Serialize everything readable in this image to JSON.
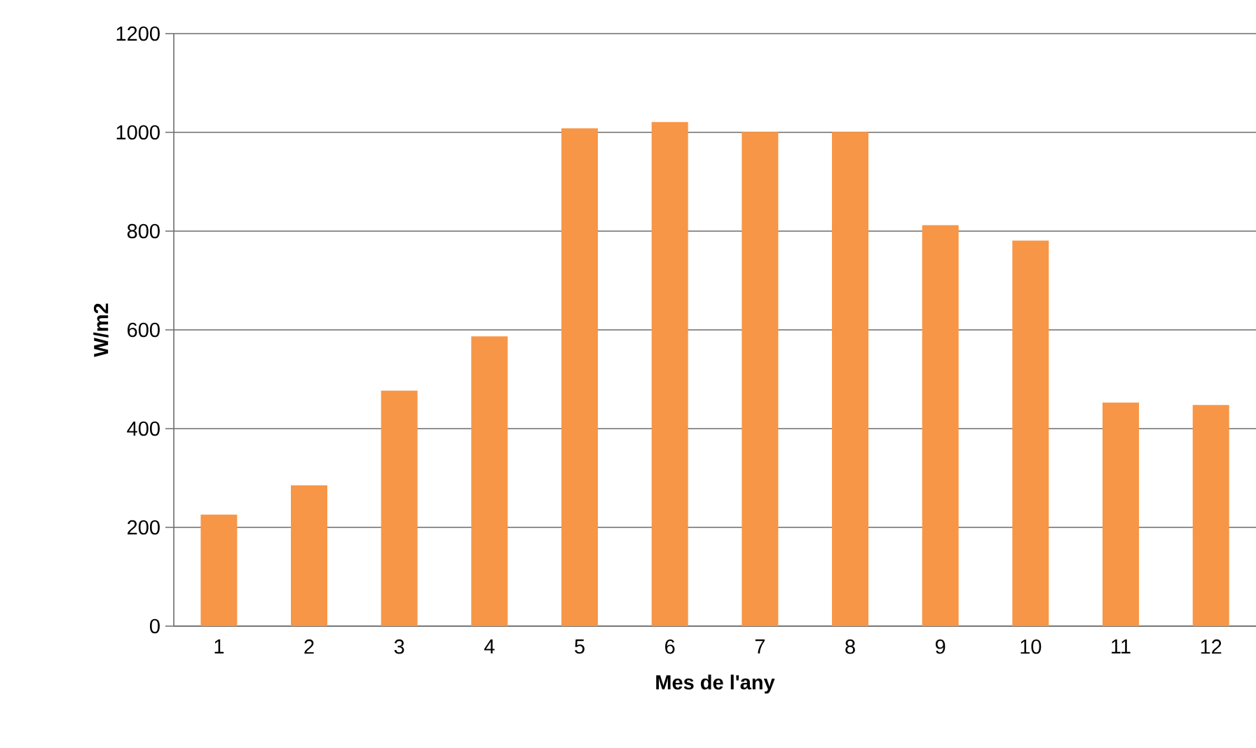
{
  "chart_data": {
    "type": "bar",
    "xlabel": "Mes de l'any",
    "ylabel": "W/m2",
    "categories": [
      "1",
      "2",
      "3",
      "4",
      "5",
      "6",
      "7",
      "8",
      "9",
      "10",
      "11",
      "12"
    ],
    "values": [
      226,
      285,
      477,
      587,
      1008,
      1021,
      1001,
      1001,
      812,
      781,
      453,
      448
    ],
    "color": "#f79646",
    "ylim": [
      0,
      1200
    ],
    "yticks": [
      0,
      200,
      400,
      600,
      800,
      1000,
      1200
    ],
    "grid": "y"
  }
}
